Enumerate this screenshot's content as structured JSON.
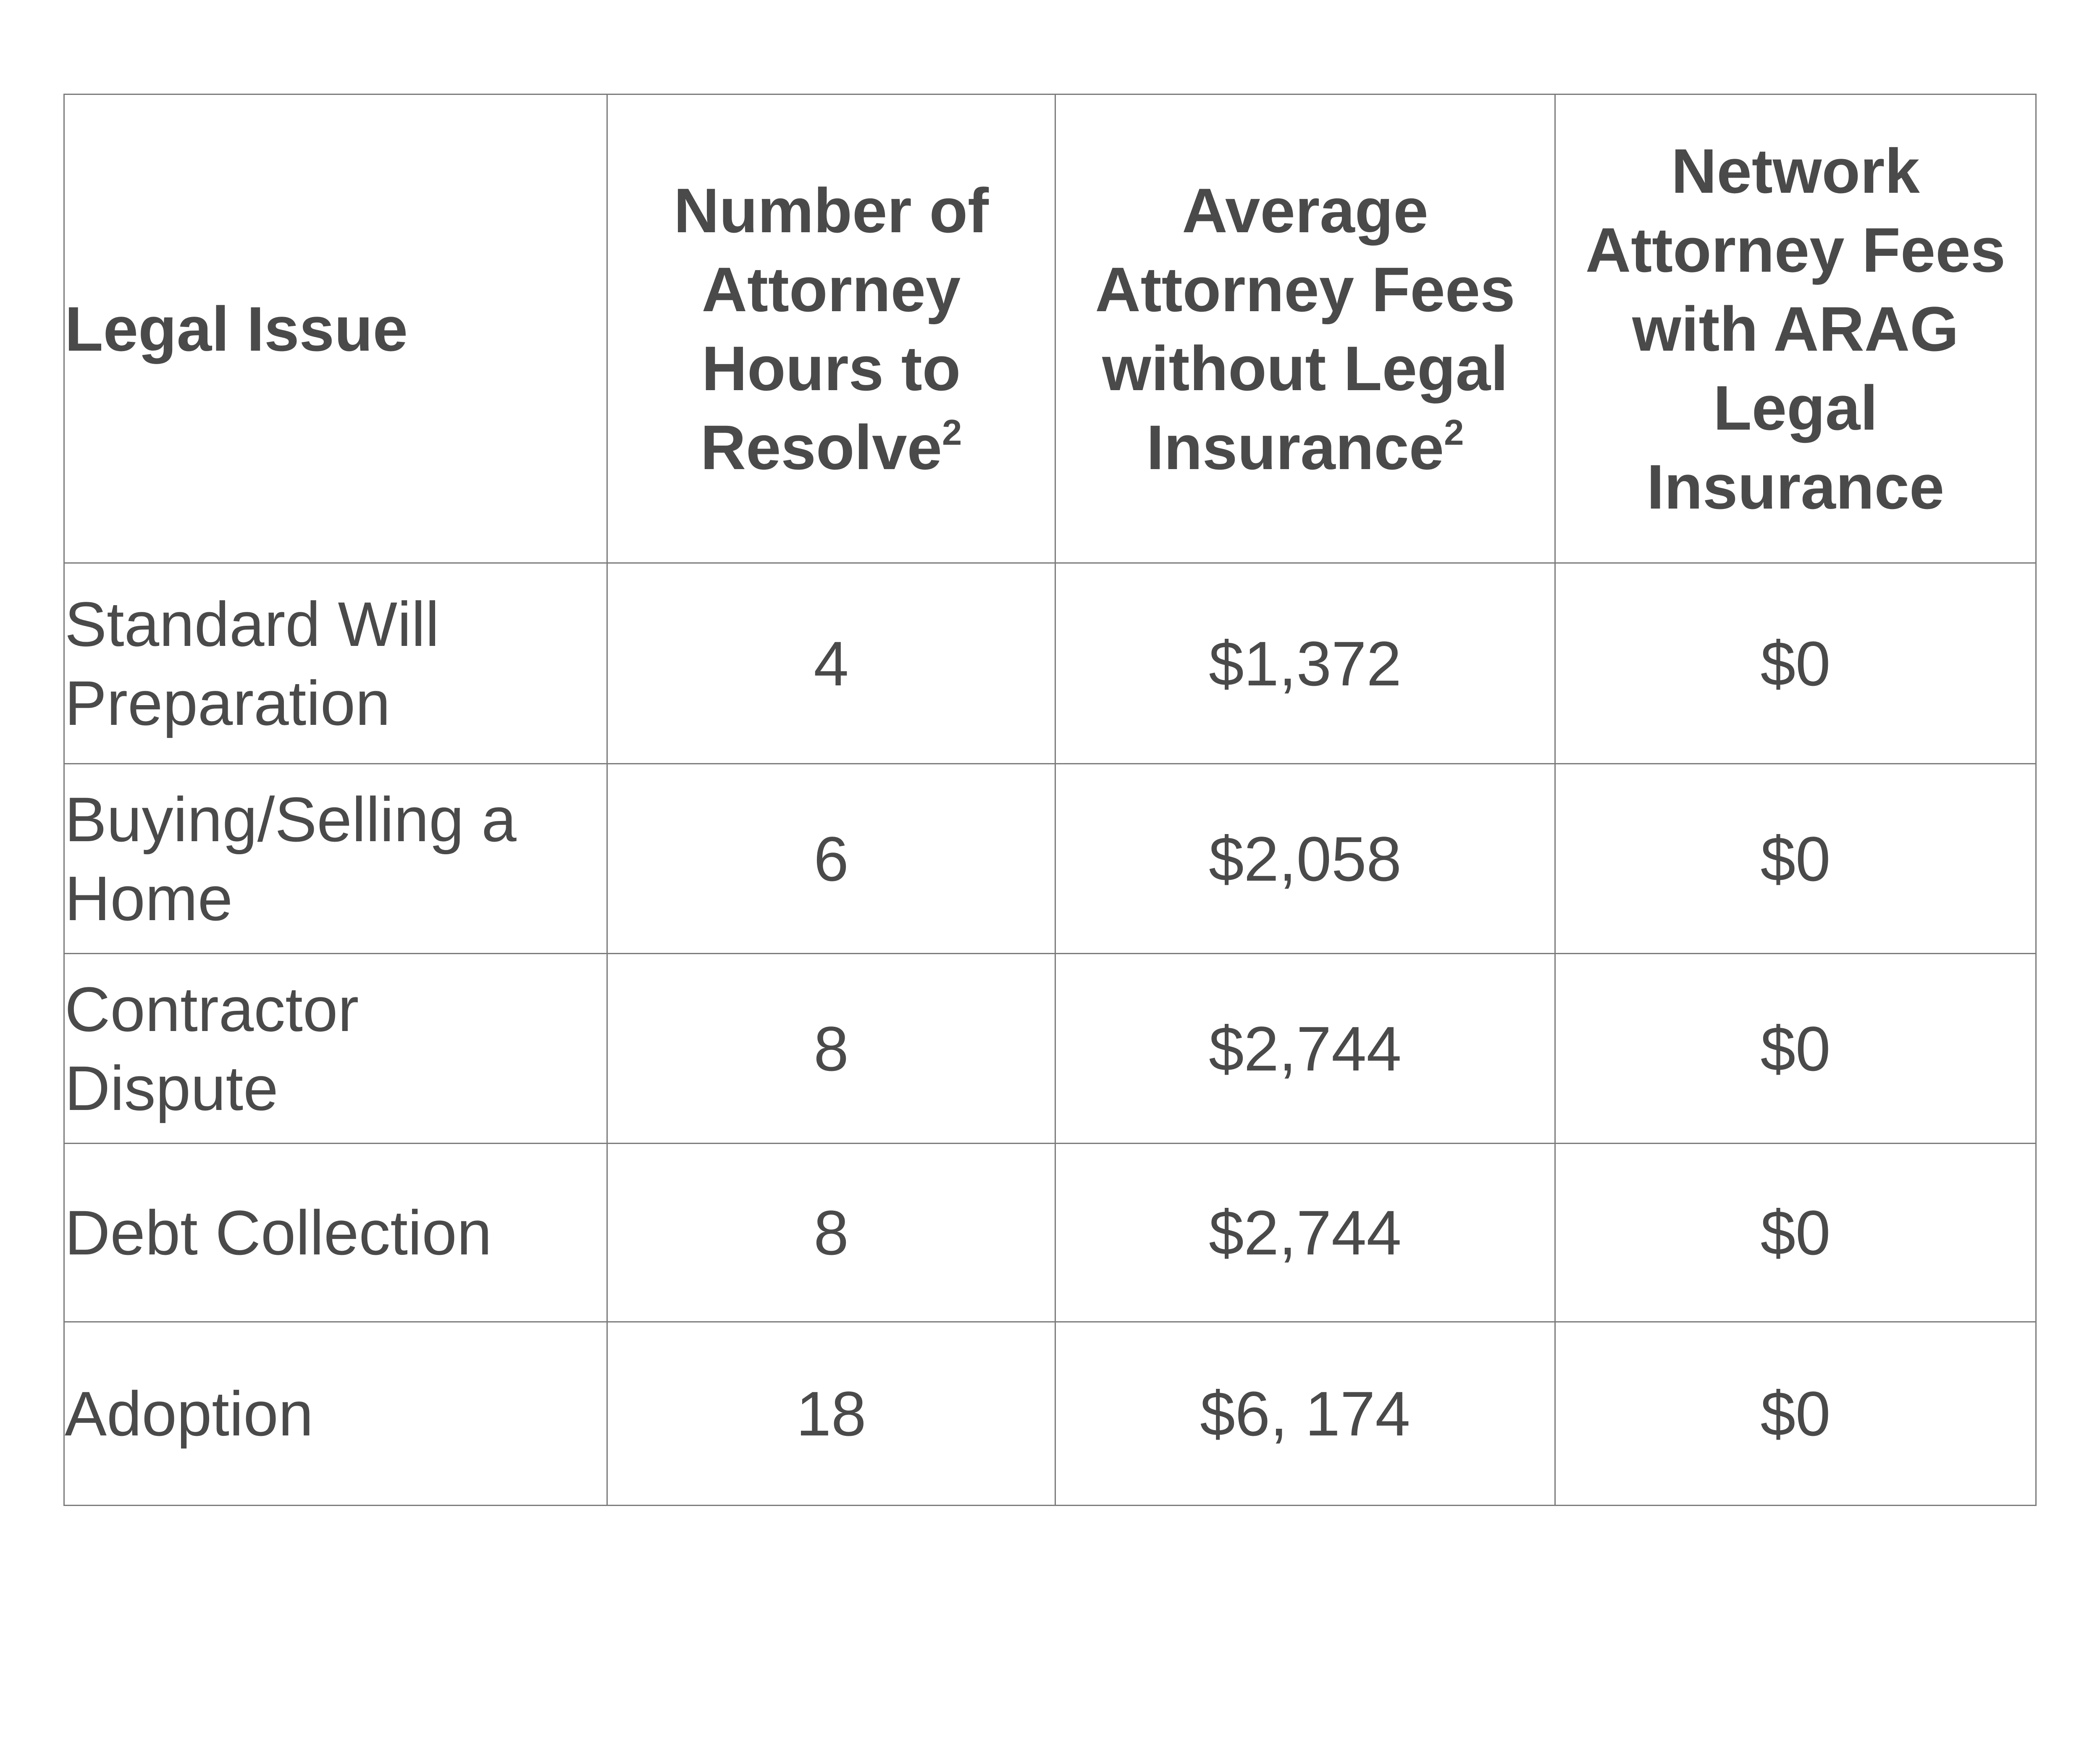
{
  "table": {
    "headers": [
      {
        "text": "Legal Issue",
        "sup": ""
      },
      {
        "text": "Number of Attorney Hours to Resolve",
        "sup": "2"
      },
      {
        "text": "Average Attorney Fees without Legal Insurance",
        "sup": "2"
      },
      {
        "text": "Network Attorney Fees with ARAG Legal Insurance",
        "sup": ""
      }
    ],
    "rows": [
      {
        "issue": "Standard Will Preparation",
        "hours": "4",
        "fees_without": "$1,372",
        "fees_with": "$0"
      },
      {
        "issue": "Buying/Selling a Home",
        "hours": "6",
        "fees_without": "$2,058",
        "fees_with": "$0"
      },
      {
        "issue": "Contractor Dispute",
        "hours": "8",
        "fees_without": "$2,744",
        "fees_with": "$0"
      },
      {
        "issue": "Debt Collection",
        "hours": "8",
        "fees_without": "$2,744",
        "fees_with": "$0"
      },
      {
        "issue": "Adoption",
        "hours": "18",
        "fees_without": "$6, 174",
        "fees_with": "$0"
      }
    ]
  },
  "colors": {
    "text": "#4a4a4a",
    "border": "#7b7b7b",
    "background": "#ffffff"
  }
}
